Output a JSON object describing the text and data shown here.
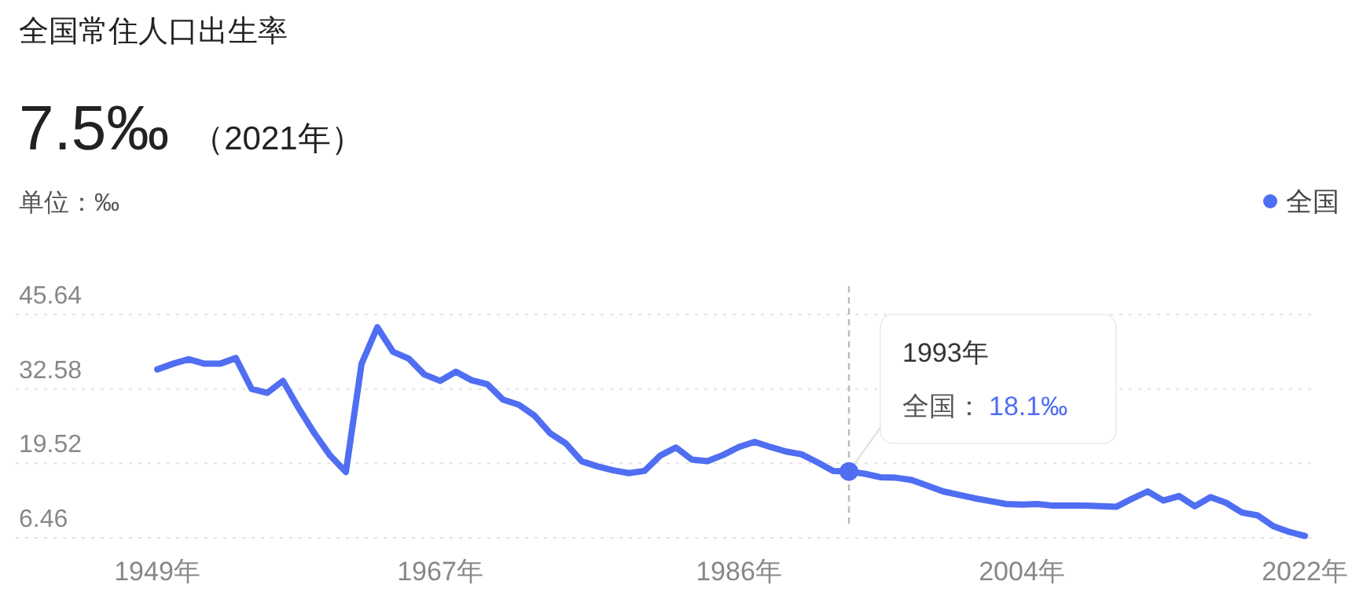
{
  "chart_data": {
    "type": "line",
    "title": "全国常住人口出生率",
    "subtitle": "7.5‰ （2021年）",
    "ylabel": "单位：‰",
    "x": [
      1949,
      1950,
      1951,
      1952,
      1953,
      1954,
      1955,
      1956,
      1957,
      1958,
      1959,
      1960,
      1961,
      1962,
      1963,
      1964,
      1965,
      1966,
      1967,
      1968,
      1969,
      1970,
      1971,
      1972,
      1973,
      1974,
      1975,
      1976,
      1977,
      1978,
      1979,
      1980,
      1981,
      1982,
      1983,
      1984,
      1985,
      1986,
      1987,
      1988,
      1989,
      1990,
      1991,
      1992,
      1993,
      1994,
      1995,
      1996,
      1997,
      1998,
      1999,
      2000,
      2001,
      2002,
      2003,
      2004,
      2005,
      2006,
      2007,
      2008,
      2009,
      2010,
      2011,
      2012,
      2013,
      2014,
      2015,
      2016,
      2017,
      2018,
      2019,
      2020,
      2021,
      2022
    ],
    "series": [
      {
        "name": "全国",
        "color": "#4f6ef2",
        "values": [
          36.0,
          37.0,
          37.8,
          37.0,
          37.0,
          38.0,
          32.6,
          31.9,
          34.0,
          29.2,
          24.8,
          20.9,
          18.0,
          37.0,
          43.4,
          39.1,
          37.9,
          35.1,
          34.0,
          35.6,
          34.1,
          33.4,
          30.7,
          29.8,
          27.9,
          24.8,
          23.0,
          19.9,
          19.0,
          18.3,
          17.8,
          18.2,
          20.9,
          22.3,
          20.2,
          19.9,
          21.0,
          22.4,
          23.3,
          22.4,
          21.6,
          21.1,
          19.7,
          18.2,
          18.1,
          17.7,
          17.1,
          17.0,
          16.6,
          15.6,
          14.6,
          14.0,
          13.4,
          12.9,
          12.4,
          12.3,
          12.4,
          12.1,
          12.1,
          12.1,
          12.0,
          11.9,
          13.3,
          14.6,
          13.0,
          13.8,
          12.0,
          13.6,
          12.6,
          10.9,
          10.4,
          8.5,
          7.5,
          6.8
        ]
      }
    ],
    "xlim": [
      1940,
      2022.5
    ],
    "xticks": [
      {
        "value": 1949,
        "label": "1949年"
      },
      {
        "value": 1967,
        "label": "1967年"
      },
      {
        "value": 1986,
        "label": "1986年"
      },
      {
        "value": 2004,
        "label": "2004年"
      },
      {
        "value": 2022,
        "label": "2022年"
      }
    ],
    "ylim": [
      6.46,
      45.64
    ],
    "yticks": [
      6.46,
      19.52,
      32.58,
      45.64
    ],
    "grid": "y",
    "legend": "top right",
    "ref_lines": [
      {
        "axis": "x",
        "value": 1993,
        "color": "#bbbbbb",
        "line_style": "dashed"
      }
    ],
    "annotations": [
      "1993年",
      {
        "text": "全国：18.1‰",
        "x": 1993,
        "y": 18.1
      }
    ]
  }
}
